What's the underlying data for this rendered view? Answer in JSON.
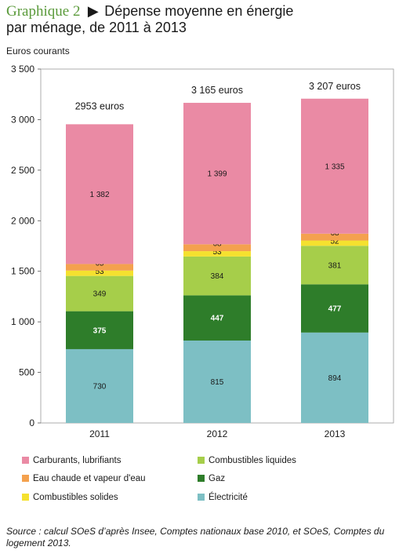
{
  "title": {
    "prefix": "Graphique 2",
    "line1": "Dépense moyenne en énergie",
    "line2": "par ménage, de 2011 à 2013"
  },
  "source": "Source : calcul SOeS d’après Insee, Comptes nationaux base 2010, et SOeS, Comptes du logement 2013.",
  "chart_data": {
    "type": "bar",
    "stacked": true,
    "ylabel": "Euros courants",
    "ylim": [
      0,
      3500
    ],
    "yticks": [
      0,
      500,
      1000,
      1500,
      2000,
      2500,
      3000,
      3500
    ],
    "ytick_labels": [
      "0",
      "500",
      "1 000",
      "1 500",
      "2 000",
      "2 500",
      "3 000",
      "3 500"
    ],
    "categories": [
      "2011",
      "2012",
      "2013"
    ],
    "totals": [
      2953,
      3165,
      3207
    ],
    "total_labels": [
      "2953 euros",
      "3 165 euros",
      "3 207 euros"
    ],
    "series": [
      {
        "name": "Électricité",
        "color": "#7dbfc4",
        "values": [
          730,
          815,
          894
        ],
        "labels": [
          "730",
          "815",
          "894"
        ],
        "dark": false
      },
      {
        "name": "Gaz",
        "color": "#2e7d2a",
        "values": [
          375,
          447,
          477
        ],
        "labels": [
          "375",
          "447",
          "477"
        ],
        "dark": true
      },
      {
        "name": "Combustibles liquides",
        "color": "#a6ce4a",
        "values": [
          349,
          384,
          381
        ],
        "labels": [
          "349",
          "384",
          "381"
        ],
        "dark": false
      },
      {
        "name": "Combustibles solides",
        "color": "#f5e12f",
        "values": [
          53,
          53,
          52
        ],
        "labels": [
          "53",
          "53",
          "52"
        ],
        "dark": false
      },
      {
        "name": "Eau chaude et vapeur d'eau",
        "color": "#f4a14e",
        "values": [
          65,
          68,
          68
        ],
        "labels": [
          "65",
          "68",
          "68"
        ],
        "dark": false
      },
      {
        "name": "Carburants, lubrifiants",
        "color": "#ea8aa4",
        "values": [
          1382,
          1399,
          1335
        ],
        "labels": [
          "1 382",
          "1 399",
          "1 335"
        ],
        "dark": false
      }
    ],
    "legend": {
      "placement": "bottom",
      "order": [
        "Carburants, lubrifiants",
        "Combustibles liquides",
        "Eau chaude et vapeur d'eau",
        "Gaz",
        "Combustibles solides",
        "Électricité"
      ]
    },
    "grid": false
  }
}
